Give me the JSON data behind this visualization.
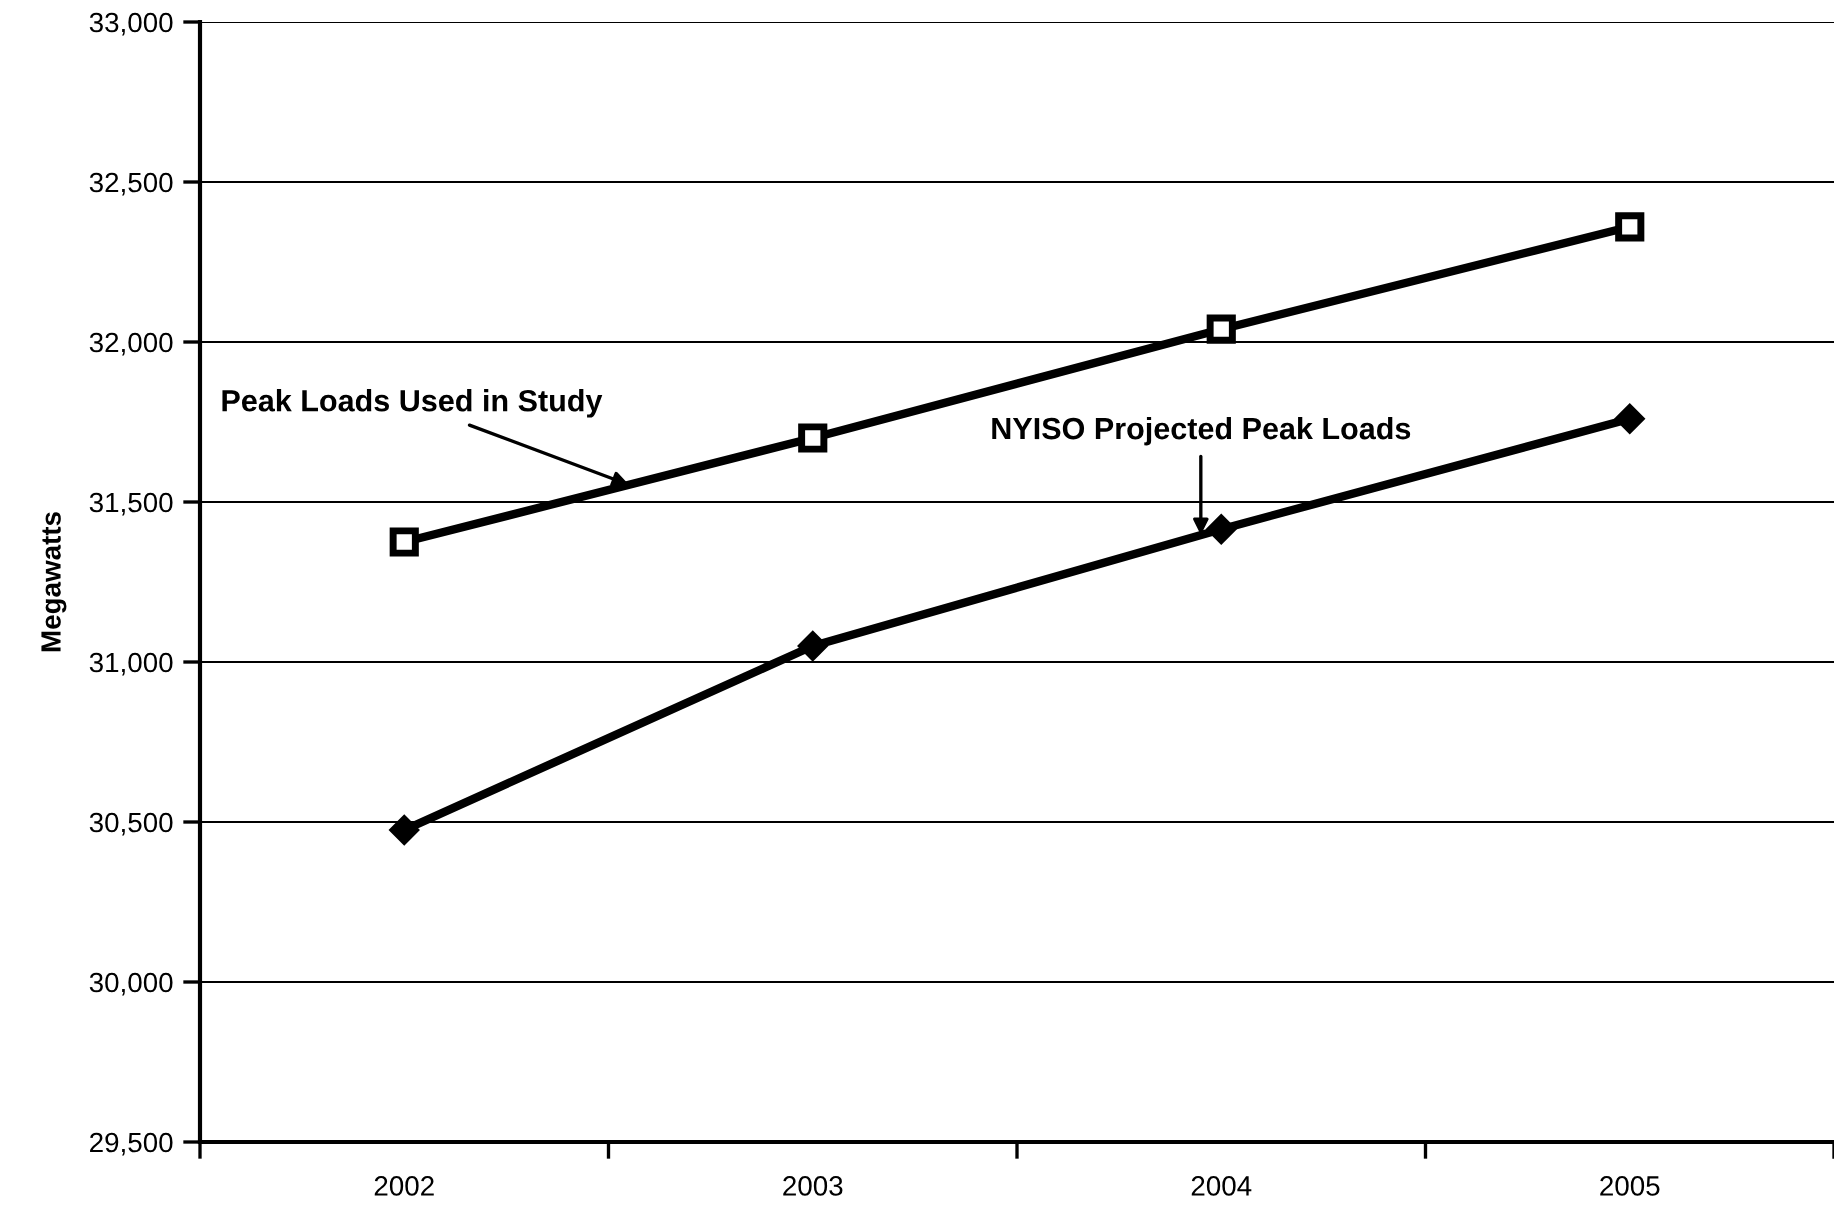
{
  "chart_data": {
    "type": "line",
    "ylabel": "Megawatts",
    "categories": [
      "2002",
      "2003",
      "2004",
      "2005"
    ],
    "series": [
      {
        "name": "Peak Loads Used in Study",
        "color": "#000000",
        "marker": "square",
        "values": [
          31375,
          31700,
          32040,
          32360
        ]
      },
      {
        "name": "NYISO Projected Peak Loads",
        "color": "#000000",
        "marker": "diamond",
        "values": [
          30475,
          31050,
          31415,
          31760
        ]
      }
    ],
    "ylim": [
      29500,
      33000
    ],
    "yticks": [
      {
        "value": 29500,
        "label": "29,500"
      },
      {
        "value": 30000,
        "label": "30,000"
      },
      {
        "value": 30500,
        "label": "30,500"
      },
      {
        "value": 31000,
        "label": "31,000"
      },
      {
        "value": 31500,
        "label": "31,500"
      },
      {
        "value": 32000,
        "label": "32,000"
      },
      {
        "value": 32500,
        "label": "32,500"
      },
      {
        "value": 33000,
        "label": "33,000"
      }
    ],
    "grid": "y",
    "line_style": "solid"
  }
}
